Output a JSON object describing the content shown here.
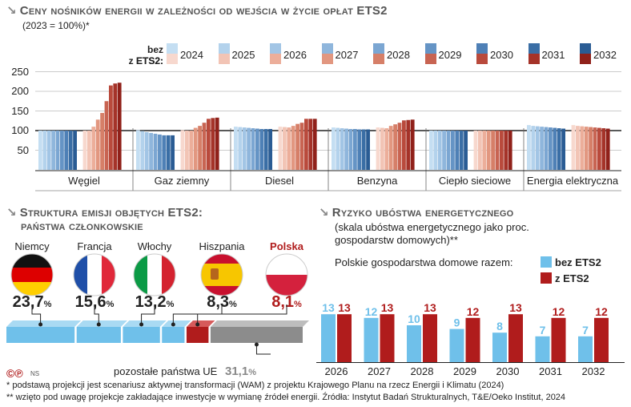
{
  "chart1": {
    "title": "Ceny nośników energii w zależności od wejścia w życie opłat ETS2",
    "subtitle": "(2023 = 100%)*",
    "legend": {
      "row_labels": [
        "bez ETS2:",
        "z ETS2:"
      ],
      "years": [
        "2024",
        "2025",
        "2026",
        "2027",
        "2028",
        "2029",
        "2030",
        "2031",
        "2032"
      ]
    },
    "y_ticks": [
      "250",
      "200",
      "150",
      "100",
      "50"
    ]
  },
  "chart_data": [
    {
      "type": "bar",
      "title": "Ceny nośników energii w zależności od wejścia w życie opłat ETS2",
      "subtitle": "(2023 = 100%)*",
      "ylim": [
        0,
        250
      ],
      "y_ticks": [
        50,
        100,
        150,
        200,
        250
      ],
      "categories": [
        "Węgiel",
        "Gaz ziemny",
        "Diesel",
        "Benzyna",
        "Ciepło sieciowe",
        "Energia elektryczna"
      ],
      "years": [
        "2024",
        "2025",
        "2026",
        "2027",
        "2028",
        "2029",
        "2030",
        "2031",
        "2032"
      ],
      "series": [
        {
          "name": "bez ETS2",
          "values": [
            [
              100,
              100,
              100,
              100,
              100,
              100,
              100,
              100,
              100
            ],
            [
              101,
              99,
              96,
              94,
              92,
              90,
              88,
              88,
              88
            ],
            [
              110,
              109,
              108,
              107,
              106,
              105,
              104,
              104,
              104
            ],
            [
              108,
              107,
              106,
              105,
              104,
              104,
              103,
              103,
              103
            ],
            [
              100,
              100,
              100,
              100,
              100,
              100,
              100,
              100,
              100
            ],
            [
              114,
              112,
              111,
              110,
              109,
              108,
              107,
              106,
              105
            ]
          ]
        },
        {
          "name": "z ETS2",
          "values": [
            [
              100,
              100,
              110,
              128,
              145,
              175,
              215,
              220,
              222
            ],
            [
              101,
              100,
              100,
              107,
              112,
              120,
              130,
              132,
              133
            ],
            [
              110,
              109,
              108,
              112,
              117,
              120,
              130,
              130,
              130
            ],
            [
              108,
              107,
              106,
              112,
              116,
              120,
              126,
              127,
              128
            ],
            [
              100,
              100,
              100,
              100,
              100,
              100,
              100,
              100,
              100
            ],
            [
              114,
              112,
              111,
              110,
              109,
              108,
              107,
              106,
              105
            ]
          ]
        }
      ]
    },
    {
      "type": "bar",
      "title": "Ryzyko ubóstwa energetycznego",
      "subtitle": "(skala ubóstwa energetycznego jako proc. gospodarstw domowych)**",
      "categories": [
        "2026",
        "2027",
        "2028",
        "2029",
        "2030",
        "2031",
        "2032"
      ],
      "series": [
        {
          "name": "bez ETS2",
          "values": [
            13,
            12,
            10,
            9,
            8,
            7,
            7
          ]
        },
        {
          "name": "z ETS2",
          "values": [
            13,
            13,
            13,
            12,
            13,
            12,
            12
          ]
        }
      ]
    },
    {
      "type": "bar",
      "title": "Struktura emisji objętych ETS2: państwa członkowskie",
      "categories": [
        "Niemcy",
        "Francja",
        "Włochy",
        "Hiszpania",
        "Polska",
        "pozostałe państwa UE"
      ],
      "values": [
        23.7,
        15.6,
        13.2,
        8.3,
        8.1,
        31.1
      ]
    }
  ],
  "chart2": {
    "title_line1": "Struktura emisji objętych ETS2:",
    "title_line2": "państwa członkowskie",
    "countries": [
      {
        "name": "Niemcy",
        "pct": "23,7",
        "unit": "%"
      },
      {
        "name": "Francja",
        "pct": "15,6",
        "unit": "%"
      },
      {
        "name": "Włochy",
        "pct": "13,2",
        "unit": "%"
      },
      {
        "name": "Hiszpania",
        "pct": "8,3",
        "unit": "%"
      },
      {
        "name": "Polska",
        "pct": "8,1",
        "unit": "%"
      }
    ],
    "others_label": "pozostałe państwa UE",
    "others_pct": "31,1",
    "others_unit": "%"
  },
  "chart3": {
    "title": "Ryzyko ubóstwa energetycznego",
    "subtitle_line1": "(skala ubóstwa energetycznego jako proc.",
    "subtitle_line2": "gospodarstw domowych)**",
    "legend_intro": "Polskie gospodarstwa domowe razem:",
    "legend_a": "bez ETS2",
    "legend_b": "z ETS2",
    "years": [
      "2026",
      "2027",
      "2028",
      "2029",
      "2030",
      "2031",
      "2032"
    ],
    "without": [
      "13",
      "12",
      "10",
      "9",
      "8",
      "7",
      "7"
    ],
    "with": [
      "13",
      "13",
      "13",
      "12",
      "13",
      "12",
      "12"
    ]
  },
  "credits": {
    "marks": "©℗",
    "source_tag": "NS"
  },
  "footnotes": {
    "f1": "* podstawą projekcji jest scenariusz aktywnej transformacji (WAM) z projektu Krajowego Planu na rzecz Energii i Klimatu (2024)",
    "f2": "** wzięto pod uwagę projekcje zakładające inwestycje w wymianę źródeł energii. Źródła: Instytut Badań Strukturalnych, T&E/Oeko Institut, 2024"
  },
  "colors": {
    "blue_scale": [
      "#c4def2",
      "#b3d2ec",
      "#a2c5e5",
      "#8fb6dc",
      "#7ba6d2",
      "#6594c5",
      "#4e80b6",
      "#3a6ea5",
      "#2a5c94"
    ],
    "red_scale": [
      "#f7d8ce",
      "#f2c4b5",
      "#ecae9a",
      "#e29780",
      "#d67f68",
      "#c86452",
      "#b94a3c",
      "#a53329",
      "#90211a"
    ],
    "light_blue": "#6fc0ea",
    "dark_red": "#b01c1c",
    "grey": "#8c8c8c"
  }
}
